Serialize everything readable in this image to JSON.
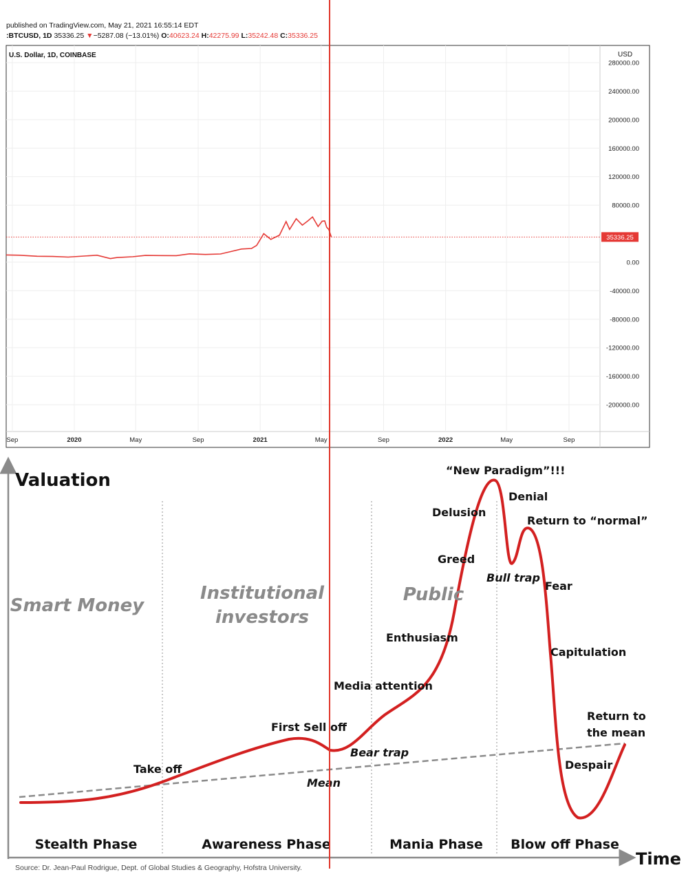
{
  "header": {
    "published": "published on TradingView.com, May 21, 2021 16:55:14 EDT",
    "symbol": ":BTCUSD, 1D",
    "last": "35336.25",
    "change": "−5287.08 (−13.01%)",
    "o_label": "O:",
    "o": "40623.24",
    "h_label": "H:",
    "h": "42275.99",
    "l_label": "L:",
    "l": "35242.48",
    "c_label": "C:",
    "c": "35336.25"
  },
  "chart_data": [
    {
      "type": "line",
      "title": "U.S. Dollar, 1D, COINBASE",
      "ylabel": "USD",
      "ylim": [
        -240000,
        280000
      ],
      "y_ticks": [
        "280000.00",
        "240000.00",
        "200000.00",
        "160000.00",
        "120000.00",
        "80000.00",
        "0.00",
        "-40000.00",
        "-80000.00",
        "-120000.00",
        "-160000.00",
        "-200000.00"
      ],
      "y_tick_values": [
        280000,
        240000,
        200000,
        160000,
        120000,
        80000,
        0,
        -40000,
        -80000,
        -120000,
        -160000,
        -200000
      ],
      "x_ticks": [
        "Sep",
        "2020",
        "May",
        "Sep",
        "2021",
        "May",
        "Sep",
        "2022",
        "May",
        "Sep"
      ],
      "x_tick_dates": [
        "2019-09-01",
        "2020-01-01",
        "2020-05-01",
        "2020-09-01",
        "2021-01-01",
        "2021-05-01",
        "2021-09-01",
        "2022-01-01",
        "2022-05-01",
        "2022-09-01"
      ],
      "xlim": [
        "2019-08-20",
        "2022-11-01"
      ],
      "last_price_label": "35336.25",
      "last_price": 35336.25,
      "grid": true,
      "series": [
        {
          "color": "#e53935",
          "x": [
            "2019-08-20",
            "2019-09-15",
            "2019-10-20",
            "2019-11-20",
            "2019-12-20",
            "2020-01-20",
            "2020-02-15",
            "2020-03-12",
            "2020-03-25",
            "2020-04-25",
            "2020-05-20",
            "2020-06-20",
            "2020-07-20",
            "2020-08-15",
            "2020-09-15",
            "2020-10-15",
            "2020-11-05",
            "2020-11-25",
            "2020-12-15",
            "2020-12-25",
            "2021-01-08",
            "2021-01-22",
            "2021-02-08",
            "2021-02-21",
            "2021-02-28",
            "2021-03-13",
            "2021-03-25",
            "2021-04-05",
            "2021-04-14",
            "2021-04-25",
            "2021-05-03",
            "2021-05-08",
            "2021-05-12",
            "2021-05-16",
            "2021-05-21"
          ],
          "y": [
            10200,
            9800,
            8300,
            8000,
            7200,
            8600,
            9800,
            5000,
            6500,
            7600,
            9500,
            9300,
            9200,
            11700,
            10800,
            11500,
            15000,
            18500,
            19200,
            23500,
            40000,
            32000,
            38000,
            57000,
            46000,
            61000,
            52000,
            58000,
            63500,
            50000,
            57500,
            58000,
            49000,
            46000,
            35336
          ]
        }
      ]
    },
    {
      "type": "line",
      "title": "",
      "xlabel": "Time",
      "ylabel": "Valuation",
      "series": [
        {
          "name": "",
          "color": "#d32020"
        },
        {
          "name": "Mean",
          "color": "#8a8a8a",
          "dashed": true
        }
      ],
      "regions": [
        "Smart Money",
        "Institutional investors",
        "Public"
      ],
      "phases": [
        "Stealth Phase",
        "Awareness Phase",
        "Mania Phase",
        "Blow off Phase"
      ],
      "annotations": [
        "Take off",
        "First Sell off",
        "Bear trap",
        "Mean",
        "Media attention",
        "Enthusiasm",
        "Greed",
        "Delusion",
        "“New Paradigm”!!!",
        "Denial",
        "Return to “normal”",
        "Bull trap",
        "Fear",
        "Capitulation",
        "Despair",
        "Return to the mean"
      ]
    }
  ],
  "cycle": {
    "ylabel": "Valuation",
    "xlabel": "Time",
    "smart_money": "Smart Money",
    "institutional_1": "Institutional",
    "institutional_2": "investors",
    "public": "Public",
    "phase_stealth": "Stealth Phase",
    "phase_awareness": "Awareness Phase",
    "phase_mania": "Mania Phase",
    "phase_blowoff": "Blow off Phase",
    "take_off": "Take off",
    "first_sell_off": "First Sell off",
    "bear_trap": "Bear trap",
    "mean": "Mean",
    "media_attention": "Media attention",
    "enthusiasm": "Enthusiasm",
    "greed": "Greed",
    "delusion": "Delusion",
    "new_paradigm": "“New Paradigm”!!!",
    "denial": "Denial",
    "return_normal": "Return to “normal”",
    "bull_trap": "Bull trap",
    "fear": "Fear",
    "capitulation": "Capitulation",
    "despair": "Despair",
    "return_mean_1": "Return to",
    "return_mean_2": "the mean",
    "source": "Source: Dr. Jean-Paul Rodrigue, Dept. of Global Studies & Geography, Hofstra University."
  }
}
